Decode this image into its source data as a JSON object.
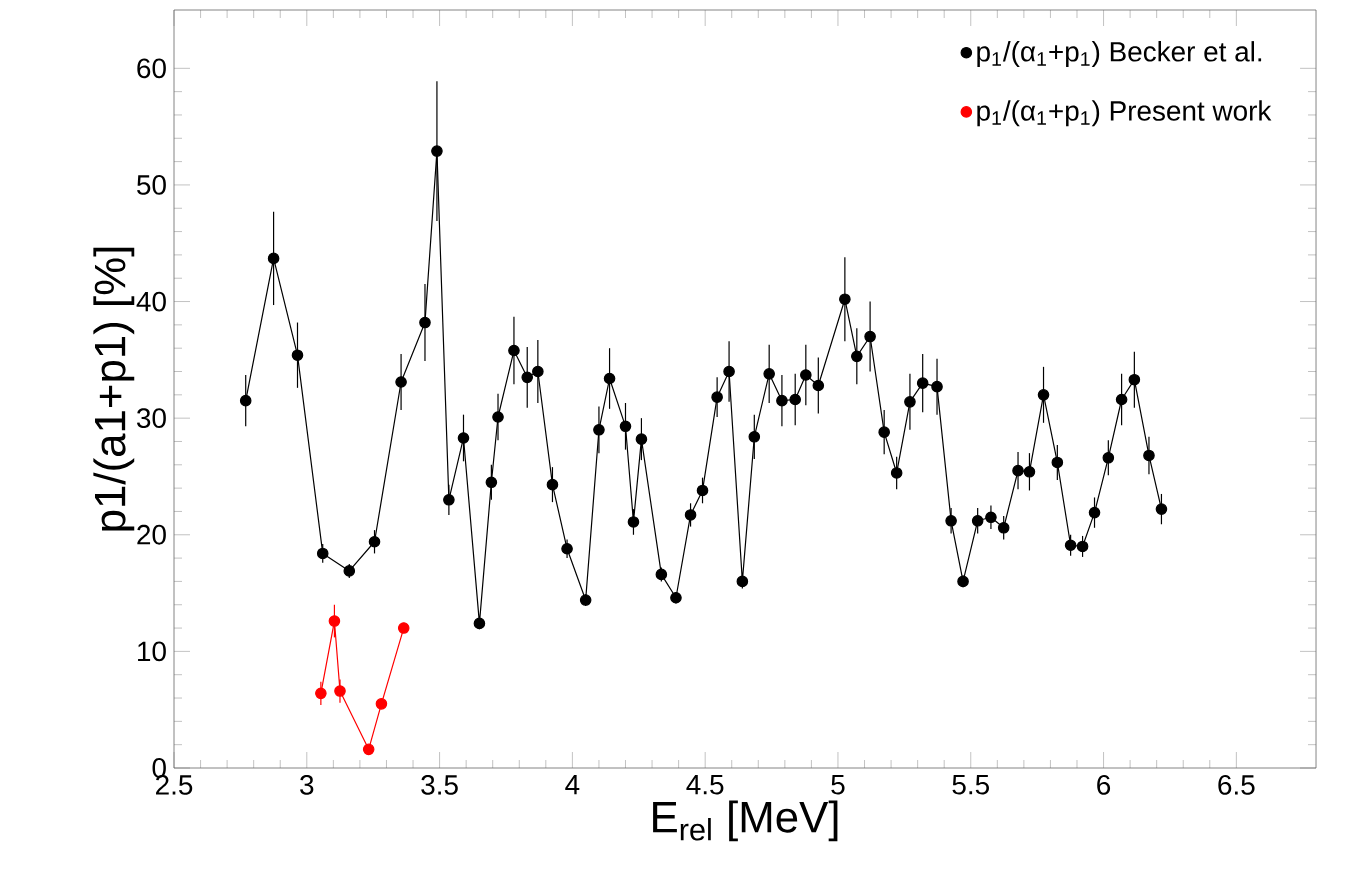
{
  "chart_data": {
    "type": "line",
    "xlabel": "E$_{rel}$ [MeV]",
    "ylabel": "p1/(a1+p1) [%]",
    "xlim": [
      2.5,
      6.8
    ],
    "ylim": [
      0,
      65
    ],
    "xticks": [
      2.5,
      3,
      3.5,
      4,
      4.5,
      5,
      5.5,
      6,
      6.5
    ],
    "yticks": [
      0,
      10,
      20,
      30,
      40,
      50,
      60
    ],
    "legend": "top right",
    "marker": "circle",
    "line_style": "solid",
    "grid": false,
    "series": [
      {
        "name": "p$_{1}$/(α$_{1}$+p$_{1}$) Becker et al.",
        "color": "#000000",
        "x": [
          2.77,
          2.875,
          2.965,
          3.06,
          3.16,
          3.255,
          3.355,
          3.445,
          3.49,
          3.535,
          3.59,
          3.65,
          3.695,
          3.72,
          3.78,
          3.83,
          3.87,
          3.925,
          3.98,
          4.05,
          4.1,
          4.14,
          4.2,
          4.23,
          4.26,
          4.335,
          4.39,
          4.445,
          4.49,
          4.545,
          4.59,
          4.64,
          4.685,
          4.741,
          4.789,
          4.839,
          4.879,
          4.926,
          5.026,
          5.071,
          5.121,
          5.174,
          5.221,
          5.271,
          5.319,
          5.373,
          5.426,
          5.471,
          5.526,
          5.576,
          5.624,
          5.678,
          5.721,
          5.774,
          5.826,
          5.876,
          5.921,
          5.966,
          6.018,
          6.068,
          6.116,
          6.171,
          6.218
        ],
        "values": [
          31.5,
          43.7,
          35.4,
          18.4,
          16.9,
          19.4,
          33.1,
          38.2,
          52.9,
          23.0,
          28.3,
          12.4,
          24.5,
          30.1,
          35.8,
          33.5,
          34.0,
          24.3,
          18.8,
          14.4,
          29.0,
          33.4,
          29.3,
          21.1,
          28.2,
          16.6,
          14.6,
          21.7,
          23.8,
          31.8,
          34.0,
          16.0,
          28.4,
          33.8,
          31.5,
          31.6,
          33.7,
          32.8,
          40.2,
          35.3,
          37.0,
          28.8,
          25.3,
          31.4,
          33.0,
          32.7,
          21.2,
          16.0,
          21.2,
          21.5,
          20.6,
          25.5,
          25.4,
          32.0,
          26.2,
          19.1,
          19.0,
          21.9,
          26.6,
          31.6,
          33.3,
          26.8,
          22.2
        ],
        "errors": [
          2.2,
          4.0,
          2.8,
          0.8,
          0.6,
          1.0,
          2.4,
          3.3,
          6.0,
          1.3,
          2.0,
          0.5,
          1.5,
          2.0,
          2.9,
          2.6,
          2.7,
          1.5,
          0.8,
          0.5,
          2.0,
          2.6,
          2.0,
          1.1,
          1.8,
          0.6,
          0.5,
          1.0,
          1.1,
          1.7,
          2.6,
          0.6,
          1.9,
          2.5,
          2.2,
          2.2,
          2.6,
          2.4,
          3.6,
          2.4,
          3.0,
          1.9,
          1.4,
          2.4,
          2.5,
          2.4,
          1.1,
          0.5,
          1.1,
          1.0,
          1.0,
          1.6,
          1.6,
          2.4,
          1.5,
          0.9,
          0.9,
          1.3,
          1.5,
          2.2,
          2.4,
          1.6,
          1.3
        ]
      },
      {
        "name": "p$_{1}$/(α$_{1}$+p$_{1}$) Present work",
        "color": "#ff0000",
        "x": [
          3.053,
          3.104,
          3.125,
          3.233,
          3.281,
          3.365
        ],
        "values": [
          6.4,
          12.6,
          6.6,
          1.6,
          5.5,
          12.0
        ],
        "errors": [
          1.0,
          1.4,
          1.0,
          null,
          null,
          null
        ]
      }
    ]
  }
}
